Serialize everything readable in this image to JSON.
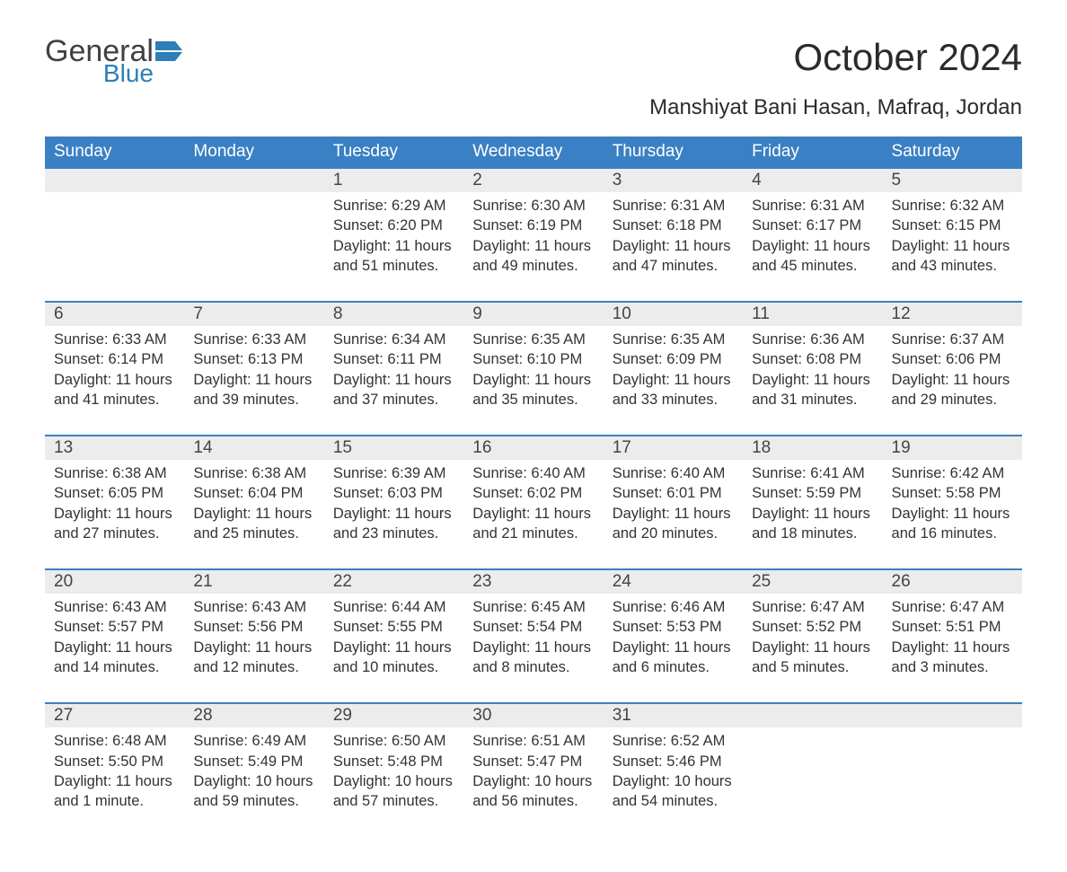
{
  "logo": {
    "general": "General",
    "blue": "Blue"
  },
  "title": "October 2024",
  "location": "Manshiyat Bani Hasan, Mafraq, Jordan",
  "colors": {
    "header_bg": "#3a80c4",
    "header_text": "#ffffff",
    "daynum_bg": "#ececec",
    "daynum_border": "#3a80c4",
    "body_text": "#333333",
    "logo_gray": "#404040",
    "logo_blue": "#2c7fb8",
    "page_bg": "#ffffff"
  },
  "fonts": {
    "title_size_pt": 32,
    "location_size_pt": 18,
    "header_size_pt": 14,
    "daynum_size_pt": 14,
    "detail_size_pt": 12
  },
  "weekdays": [
    "Sunday",
    "Monday",
    "Tuesday",
    "Wednesday",
    "Thursday",
    "Friday",
    "Saturday"
  ],
  "weeks": [
    {
      "nums": [
        "",
        "",
        "1",
        "2",
        "3",
        "4",
        "5"
      ],
      "cells": [
        "",
        "",
        "Sunrise: 6:29 AM\nSunset: 6:20 PM\nDaylight: 11 hours and 51 minutes.",
        "Sunrise: 6:30 AM\nSunset: 6:19 PM\nDaylight: 11 hours and 49 minutes.",
        "Sunrise: 6:31 AM\nSunset: 6:18 PM\nDaylight: 11 hours and 47 minutes.",
        "Sunrise: 6:31 AM\nSunset: 6:17 PM\nDaylight: 11 hours and 45 minutes.",
        "Sunrise: 6:32 AM\nSunset: 6:15 PM\nDaylight: 11 hours and 43 minutes."
      ]
    },
    {
      "nums": [
        "6",
        "7",
        "8",
        "9",
        "10",
        "11",
        "12"
      ],
      "cells": [
        "Sunrise: 6:33 AM\nSunset: 6:14 PM\nDaylight: 11 hours and 41 minutes.",
        "Sunrise: 6:33 AM\nSunset: 6:13 PM\nDaylight: 11 hours and 39 minutes.",
        "Sunrise: 6:34 AM\nSunset: 6:11 PM\nDaylight: 11 hours and 37 minutes.",
        "Sunrise: 6:35 AM\nSunset: 6:10 PM\nDaylight: 11 hours and 35 minutes.",
        "Sunrise: 6:35 AM\nSunset: 6:09 PM\nDaylight: 11 hours and 33 minutes.",
        "Sunrise: 6:36 AM\nSunset: 6:08 PM\nDaylight: 11 hours and 31 minutes.",
        "Sunrise: 6:37 AM\nSunset: 6:06 PM\nDaylight: 11 hours and 29 minutes."
      ]
    },
    {
      "nums": [
        "13",
        "14",
        "15",
        "16",
        "17",
        "18",
        "19"
      ],
      "cells": [
        "Sunrise: 6:38 AM\nSunset: 6:05 PM\nDaylight: 11 hours and 27 minutes.",
        "Sunrise: 6:38 AM\nSunset: 6:04 PM\nDaylight: 11 hours and 25 minutes.",
        "Sunrise: 6:39 AM\nSunset: 6:03 PM\nDaylight: 11 hours and 23 minutes.",
        "Sunrise: 6:40 AM\nSunset: 6:02 PM\nDaylight: 11 hours and 21 minutes.",
        "Sunrise: 6:40 AM\nSunset: 6:01 PM\nDaylight: 11 hours and 20 minutes.",
        "Sunrise: 6:41 AM\nSunset: 5:59 PM\nDaylight: 11 hours and 18 minutes.",
        "Sunrise: 6:42 AM\nSunset: 5:58 PM\nDaylight: 11 hours and 16 minutes."
      ]
    },
    {
      "nums": [
        "20",
        "21",
        "22",
        "23",
        "24",
        "25",
        "26"
      ],
      "cells": [
        "Sunrise: 6:43 AM\nSunset: 5:57 PM\nDaylight: 11 hours and 14 minutes.",
        "Sunrise: 6:43 AM\nSunset: 5:56 PM\nDaylight: 11 hours and 12 minutes.",
        "Sunrise: 6:44 AM\nSunset: 5:55 PM\nDaylight: 11 hours and 10 minutes.",
        "Sunrise: 6:45 AM\nSunset: 5:54 PM\nDaylight: 11 hours and 8 minutes.",
        "Sunrise: 6:46 AM\nSunset: 5:53 PM\nDaylight: 11 hours and 6 minutes.",
        "Sunrise: 6:47 AM\nSunset: 5:52 PM\nDaylight: 11 hours and 5 minutes.",
        "Sunrise: 6:47 AM\nSunset: 5:51 PM\nDaylight: 11 hours and 3 minutes."
      ]
    },
    {
      "nums": [
        "27",
        "28",
        "29",
        "30",
        "31",
        "",
        ""
      ],
      "cells": [
        "Sunrise: 6:48 AM\nSunset: 5:50 PM\nDaylight: 11 hours and 1 minute.",
        "Sunrise: 6:49 AM\nSunset: 5:49 PM\nDaylight: 10 hours and 59 minutes.",
        "Sunrise: 6:50 AM\nSunset: 5:48 PM\nDaylight: 10 hours and 57 minutes.",
        "Sunrise: 6:51 AM\nSunset: 5:47 PM\nDaylight: 10 hours and 56 minutes.",
        "Sunrise: 6:52 AM\nSunset: 5:46 PM\nDaylight: 10 hours and 54 minutes.",
        "",
        ""
      ]
    }
  ]
}
